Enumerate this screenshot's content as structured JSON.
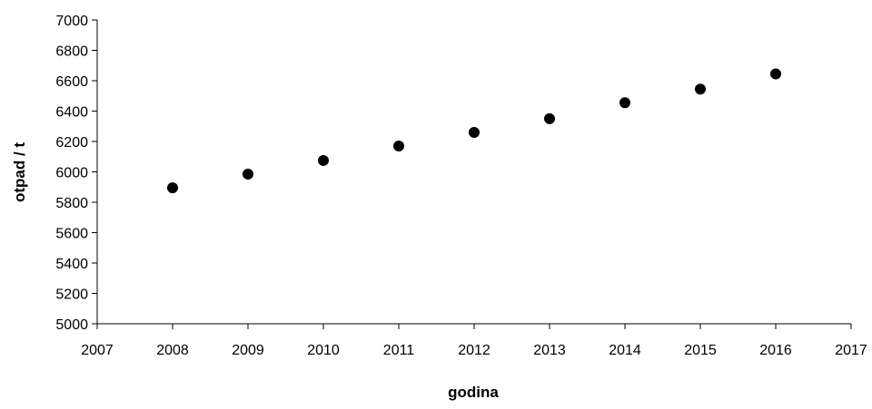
{
  "chart_data": {
    "type": "scatter",
    "title": "",
    "xlabel": "godina",
    "ylabel": "otpad / t",
    "xlim": [
      2007,
      2017
    ],
    "ylim": [
      5000,
      7000
    ],
    "x_ticks": [
      2007,
      2008,
      2009,
      2010,
      2011,
      2012,
      2013,
      2014,
      2015,
      2016,
      2017
    ],
    "y_ticks": [
      5000,
      5200,
      5400,
      5600,
      5800,
      6000,
      6200,
      6400,
      6600,
      6800,
      7000
    ],
    "grid": false,
    "legend": "none",
    "marker_color": "#000000",
    "series": [
      {
        "x": [
          2008,
          2009,
          2010,
          2011,
          2012,
          2013,
          2014,
          2015,
          2016
        ],
        "y": [
          5895,
          5985,
          6075,
          6170,
          6260,
          6350,
          6455,
          6545,
          6645
        ]
      }
    ]
  }
}
